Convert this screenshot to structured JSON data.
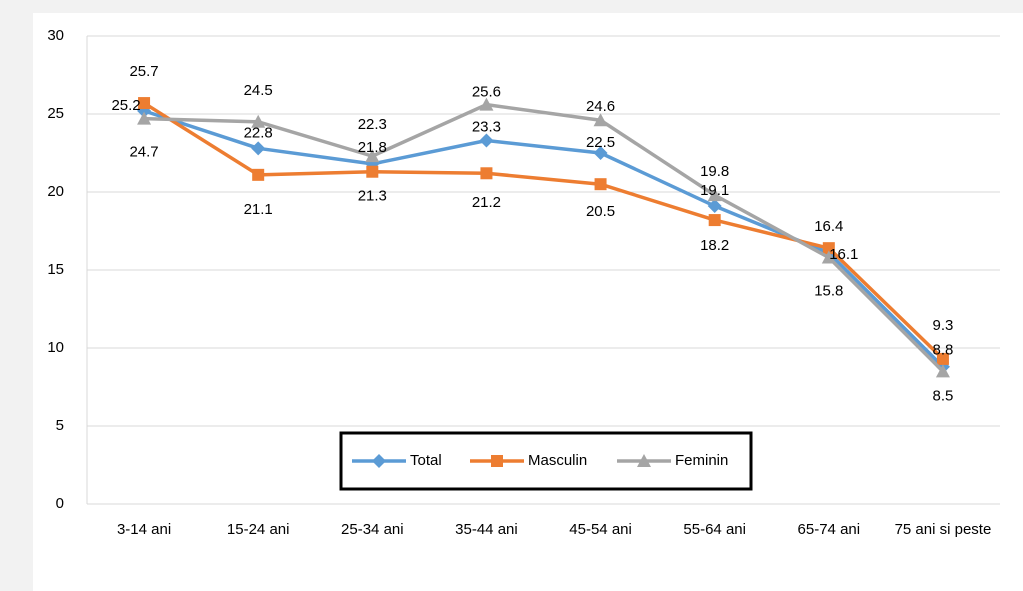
{
  "chart_data": {
    "type": "line",
    "categories": [
      "3-14 ani",
      "15-24 ani",
      "25-34 ani",
      "35-44 ani",
      "45-54 ani",
      "55-64 ani",
      "65-74 ani",
      "75 ani si peste"
    ],
    "series": [
      {
        "name": "Total",
        "color": "#5b9bd5",
        "values": [
          25.2,
          22.8,
          21.8,
          23.3,
          22.5,
          19.1,
          16.1,
          8.8
        ]
      },
      {
        "name": "Masculin",
        "color": "#ed7d31",
        "values": [
          25.7,
          21.1,
          21.3,
          21.2,
          20.5,
          18.2,
          16.4,
          9.3
        ]
      },
      {
        "name": "Feminin",
        "color": "#a5a5a5",
        "values": [
          24.7,
          24.5,
          22.3,
          25.6,
          24.6,
          19.8,
          15.8,
          8.5
        ]
      }
    ],
    "ylim": [
      0,
      30
    ],
    "yticks": [
      0,
      5,
      10,
      15,
      20,
      25,
      30
    ],
    "grid": true,
    "legend": "bottom"
  }
}
